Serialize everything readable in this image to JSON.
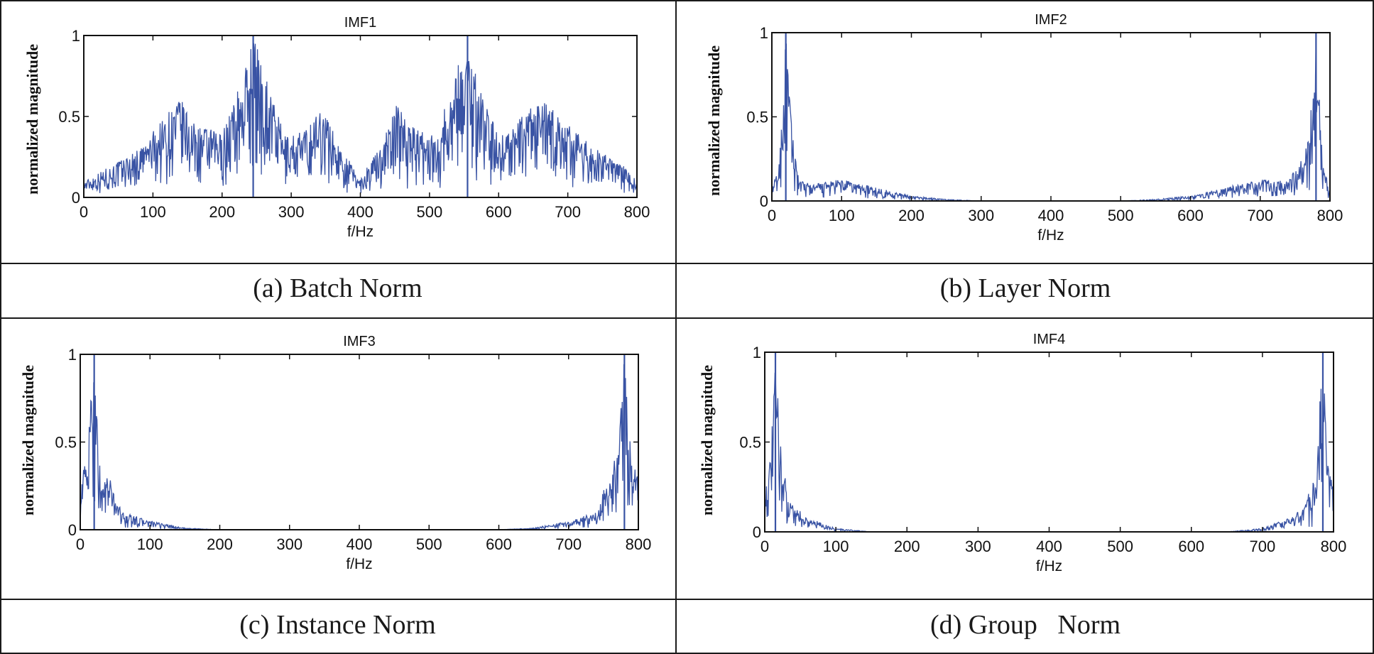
{
  "chart_data": [
    {
      "type": "line",
      "title": "IMF1",
      "xlabel": "f/Hz",
      "ylabel": "normalized  magnitude",
      "xlim": [
        0,
        800
      ],
      "ylim": [
        0,
        1
      ],
      "xticks": [
        0,
        100,
        200,
        300,
        400,
        500,
        600,
        700,
        800
      ],
      "yticks": [
        0,
        0.5,
        1
      ],
      "xtick_labels": [
        "0",
        "100",
        "200",
        "300",
        "400",
        "500",
        "600",
        "700",
        "800"
      ],
      "ytick_labels": [
        "0",
        "0.5",
        "1"
      ],
      "grid": false,
      "color": "#3953a4",
      "caption": "(a) Batch Norm",
      "series": [
        {
          "x": [
            0,
            40,
            80,
            120,
            140,
            160,
            200,
            230,
            245,
            260,
            290,
            320,
            345,
            370,
            400,
            430,
            455,
            480,
            510,
            540,
            555,
            570,
            600,
            640,
            660,
            700,
            740,
            780,
            800
          ],
          "y": [
            0.1,
            0.2,
            0.3,
            0.52,
            0.62,
            0.45,
            0.4,
            0.75,
            1.0,
            0.82,
            0.38,
            0.42,
            0.58,
            0.32,
            0.12,
            0.33,
            0.6,
            0.42,
            0.38,
            0.82,
            1.0,
            0.72,
            0.38,
            0.52,
            0.62,
            0.45,
            0.3,
            0.2,
            0.1
          ]
        }
      ]
    },
    {
      "type": "line",
      "title": "IMF2",
      "xlabel": "f/Hz",
      "ylabel": "normalized  magnitude",
      "xlim": [
        0,
        800
      ],
      "ylim": [
        0,
        1
      ],
      "xticks": [
        0,
        100,
        200,
        300,
        400,
        500,
        600,
        700,
        800
      ],
      "yticks": [
        0,
        0.5,
        1
      ],
      "xtick_labels": [
        "0",
        "100",
        "200",
        "300",
        "400",
        "500",
        "600",
        "700",
        "800"
      ],
      "ytick_labels": [
        "0",
        "0.5",
        "1"
      ],
      "grid": false,
      "color": "#3953a4",
      "caption": "(b) Layer Norm",
      "series": [
        {
          "x": [
            0,
            10,
            20,
            30,
            40,
            60,
            100,
            150,
            200,
            250,
            300,
            400,
            500,
            550,
            600,
            650,
            700,
            740,
            760,
            770,
            780,
            790,
            800
          ],
          "y": [
            0.08,
            0.2,
            1.0,
            0.38,
            0.12,
            0.1,
            0.13,
            0.08,
            0.03,
            0.01,
            0.0,
            0.0,
            0.0,
            0.01,
            0.03,
            0.08,
            0.13,
            0.12,
            0.25,
            0.4,
            1.0,
            0.2,
            0.08
          ]
        }
      ]
    },
    {
      "type": "line",
      "title": "IMF3",
      "xlabel": "f/Hz",
      "ylabel": "normalized  magnitude",
      "xlim": [
        0,
        800
      ],
      "ylim": [
        0,
        1
      ],
      "xticks": [
        0,
        100,
        200,
        300,
        400,
        500,
        600,
        700,
        800
      ],
      "yticks": [
        0,
        0.5,
        1
      ],
      "xtick_labels": [
        "0",
        "100",
        "200",
        "300",
        "400",
        "500",
        "600",
        "700",
        "800"
      ],
      "ytick_labels": [
        "0",
        "0.5",
        "1"
      ],
      "grid": false,
      "color": "#3953a4",
      "caption": "(c) Instance Norm",
      "series": [
        {
          "x": [
            0,
            10,
            20,
            30,
            40,
            60,
            100,
            150,
            200,
            400,
            600,
            650,
            700,
            740,
            760,
            770,
            780,
            790,
            800
          ],
          "y": [
            0.28,
            0.45,
            1.0,
            0.25,
            0.32,
            0.1,
            0.05,
            0.01,
            0.0,
            0.0,
            0.0,
            0.01,
            0.05,
            0.1,
            0.35,
            0.45,
            1.0,
            0.45,
            0.28
          ]
        }
      ]
    },
    {
      "type": "line",
      "title": "IMF4",
      "xlabel": "f/Hz",
      "ylabel": "normalized  magnitude",
      "xlim": [
        0,
        800
      ],
      "ylim": [
        0,
        1
      ],
      "xticks": [
        0,
        100,
        200,
        300,
        400,
        500,
        600,
        700,
        800
      ],
      "yticks": [
        0,
        0.5,
        1
      ],
      "xtick_labels": [
        "0",
        "100",
        "200",
        "300",
        "400",
        "500",
        "600",
        "700",
        "800"
      ],
      "ytick_labels": [
        "0",
        "0.5",
        "1"
      ],
      "grid": false,
      "color": "#3953a4",
      "caption": "(d) Group   Norm",
      "series": [
        {
          "x": [
            0,
            8,
            15,
            25,
            40,
            60,
            100,
            150,
            200,
            400,
            600,
            650,
            700,
            740,
            760,
            775,
            785,
            792,
            800
          ],
          "y": [
            0.25,
            0.4,
            1.0,
            0.35,
            0.15,
            0.08,
            0.02,
            0.0,
            0.0,
            0.0,
            0.0,
            0.0,
            0.02,
            0.08,
            0.15,
            0.35,
            1.0,
            0.4,
            0.25
          ]
        }
      ]
    }
  ]
}
